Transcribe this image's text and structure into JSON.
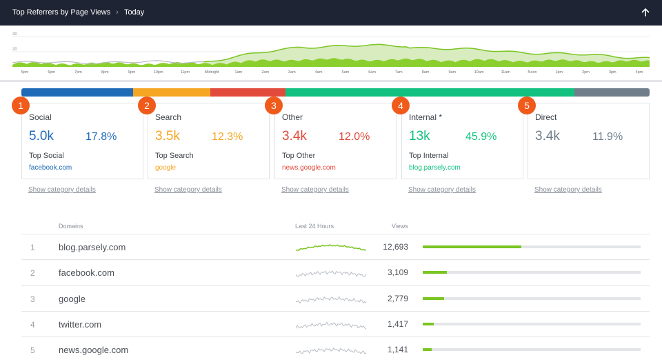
{
  "header": {
    "title": "Top Referrers by Page Views",
    "period": "Today",
    "up_icon": "arrow-up-icon"
  },
  "timeline": {
    "y_ticks": [
      "40",
      "20"
    ],
    "x_labels": [
      "5pm",
      "6pm",
      "7pm",
      "8pm",
      "9pm",
      "10pm",
      "11pm",
      "Midnight",
      "1am",
      "2am",
      "3am",
      "4am",
      "5am",
      "6am",
      "7am",
      "8am",
      "9am",
      "10am",
      "11am",
      "Noon",
      "1pm",
      "2pm",
      "3pm",
      "4pm"
    ],
    "colors": {
      "line": "#7ac522",
      "fill_light": "#d8ecc0",
      "fill_dark": "#8bcf2e",
      "gray": "#b7bcc2"
    }
  },
  "categories": [
    {
      "rank": "1",
      "name": "Social",
      "value": "5.0k",
      "pct": "17.8%",
      "top_label": "Top Social",
      "top_domain": "facebook.com",
      "color": "#1f6bb8",
      "share": 0.178,
      "details": "Show category details"
    },
    {
      "rank": "2",
      "name": "Search",
      "value": "3.5k",
      "pct": "12.3%",
      "top_label": "Top Search",
      "top_domain": "google",
      "color": "#f5a623",
      "share": 0.123,
      "details": "Show category details"
    },
    {
      "rank": "3",
      "name": "Other",
      "value": "3.4k",
      "pct": "12.0%",
      "top_label": "Top Other",
      "top_domain": "news.google.com",
      "color": "#e24a3b",
      "share": 0.12,
      "details": "Show category details"
    },
    {
      "rank": "4",
      "name": "Internal *",
      "value": "13k",
      "pct": "45.9%",
      "top_label": "Top Internal",
      "top_domain": "blog.parsely.com",
      "color": "#12c17f",
      "share": 0.459,
      "details": "Show category details"
    },
    {
      "rank": "5",
      "name": "Direct",
      "value": "3.4k",
      "pct": "11.9%",
      "top_label": "",
      "top_domain": "",
      "color": "#6f7e8a",
      "share": 0.119,
      "details": "Show category details"
    }
  ],
  "table": {
    "headers": {
      "domains": "Domains",
      "last24": "Last 24 Hours",
      "views": "Views"
    },
    "max_views": 28000,
    "rows": [
      {
        "rank": "1",
        "domain": "blog.parsely.com",
        "views": "12,693",
        "views_num": 12693,
        "spark_color": "#7ac522"
      },
      {
        "rank": "2",
        "domain": "facebook.com",
        "views": "3,109",
        "views_num": 3109,
        "spark_color": "#b7bcc2"
      },
      {
        "rank": "3",
        "domain": "google",
        "views": "2,779",
        "views_num": 2779,
        "spark_color": "#b7bcc2"
      },
      {
        "rank": "4",
        "domain": "twitter.com",
        "views": "1,417",
        "views_num": 1417,
        "spark_color": "#b7bcc2"
      },
      {
        "rank": "5",
        "domain": "news.google.com",
        "views": "1,141",
        "views_num": 1141,
        "spark_color": "#b7bcc2"
      }
    ]
  }
}
